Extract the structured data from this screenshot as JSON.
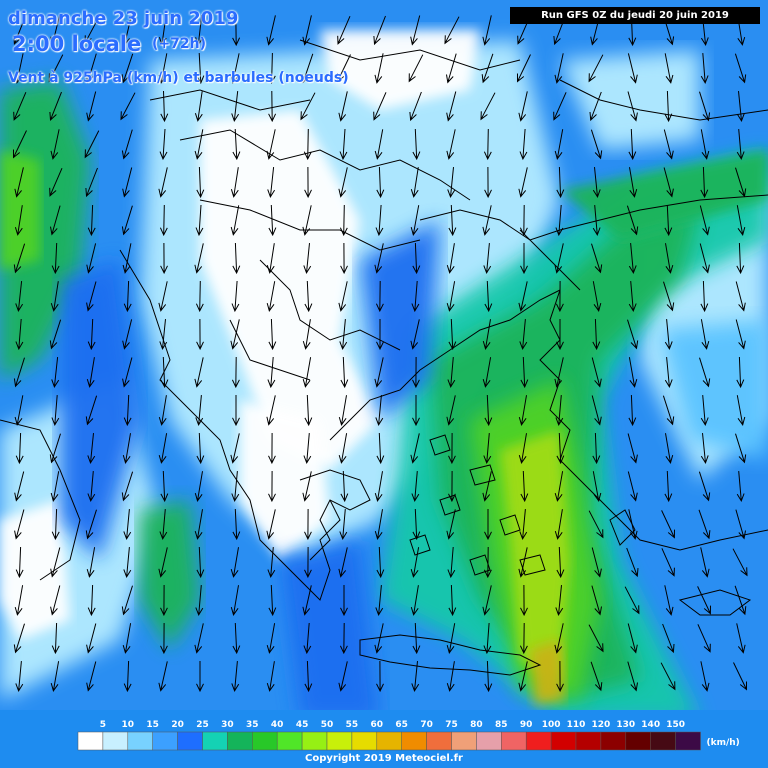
{
  "header": {
    "date": "dimanche 23 juin 2019",
    "local_time": "2:00 locale",
    "lead_time": "(+72h)",
    "variable": "Vent à 925hPa (km/h) et barbules (noeuds)"
  },
  "run_info": "Run GFS 0Z du jeudi 20 juin 2019",
  "legend": {
    "unit": "(km/h)",
    "thresholds": [
      "5",
      "10",
      "15",
      "20",
      "25",
      "30",
      "35",
      "40",
      "45",
      "50",
      "55",
      "60",
      "65",
      "70",
      "75",
      "80",
      "85",
      "90",
      "100",
      "110",
      "120",
      "130",
      "140",
      "150"
    ],
    "colors": [
      "#ffffff",
      "#c8f0ff",
      "#78d2ff",
      "#3ca0ff",
      "#1e6eff",
      "#14d2b4",
      "#14b45a",
      "#28c828",
      "#50e628",
      "#96f014",
      "#c8f00a",
      "#e6dc00",
      "#e6b400",
      "#f08c00",
      "#f06e3c",
      "#f0a078",
      "#e6a0aa",
      "#f06464",
      "#f01e1e",
      "#d20000",
      "#b40000",
      "#8c0000",
      "#640000",
      "#460a14",
      "#3c0a46"
    ]
  },
  "copyright": "Copyright 2019 Meteociel.fr",
  "map": {
    "wind_colors": {
      "calm": "#ffffff",
      "light": "#b4ebff",
      "moderate": "#5ac3ff",
      "fresh": "#2896f5",
      "strong": "#1e6ef0",
      "teal": "#14c8aa",
      "green": "#1eb45a",
      "lime": "#50d228",
      "yellow_green": "#a0dc14",
      "ochre": "#c8b414"
    },
    "coastline_color": "#000000",
    "arrow_color": "#000000"
  }
}
